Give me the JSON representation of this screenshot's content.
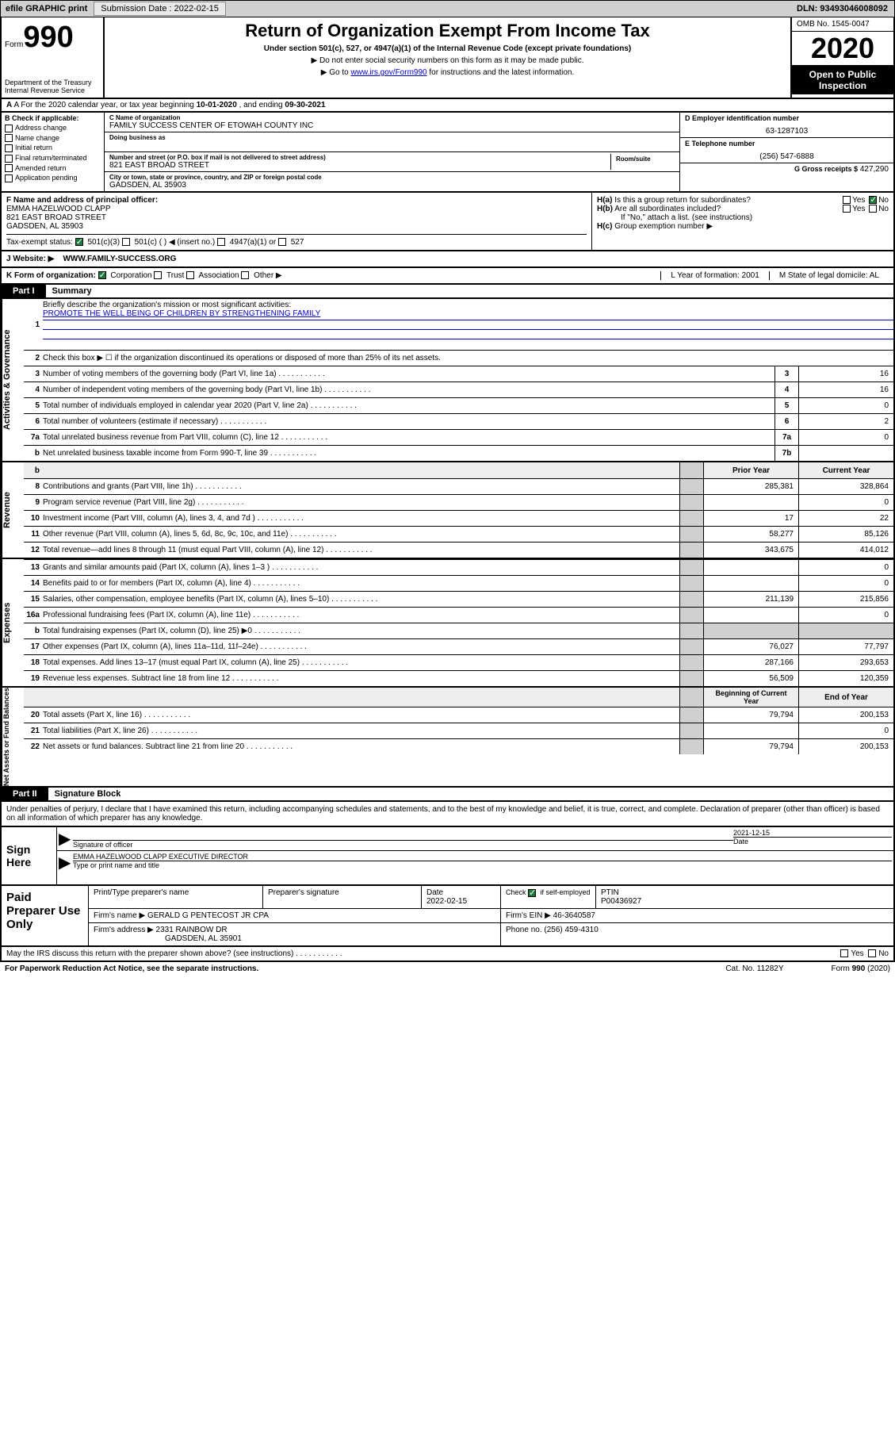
{
  "top": {
    "efile": "efile GRAPHIC print",
    "submission_label": "Submission Date :",
    "submission_date": "2022-02-15",
    "dln": "DLN: 93493046008092"
  },
  "header": {
    "form_word": "Form",
    "form_num": "990",
    "dept": "Department of the Treasury\nInternal Revenue Service",
    "title": "Return of Organization Exempt From Income Tax",
    "sub1": "Under section 501(c), 527, or 4947(a)(1) of the Internal Revenue Code (except private foundations)",
    "sub2": "▶ Do not enter social security numbers on this form as it may be made public.",
    "sub3_pre": "▶ Go to ",
    "sub3_link": "www.irs.gov/Form990",
    "sub3_post": " for instructions and the latest information.",
    "omb": "OMB No. 1545-0047",
    "year": "2020",
    "open": "Open to Public Inspection"
  },
  "row_a": {
    "pre": "A For the 2020 calendar year, or tax year beginning ",
    "begin": "10-01-2020",
    "mid": "   , and ending ",
    "end": "09-30-2021"
  },
  "col_b": {
    "hdr": "B Check if applicable:",
    "items": [
      "Address change",
      "Name change",
      "Initial return",
      "Final return/terminated",
      "Amended return",
      "Application pending"
    ]
  },
  "col_c": {
    "name_lbl": "C Name of organization",
    "name": "FAMILY SUCCESS CENTER OF ETOWAH COUNTY INC",
    "dba_lbl": "Doing business as",
    "street_lbl": "Number and street (or P.O. box if mail is not delivered to street address)",
    "street": "821 EAST BROAD STREET",
    "room_lbl": "Room/suite",
    "city_lbl": "City or town, state or province, country, and ZIP or foreign postal code",
    "city": "GADSDEN, AL  35903"
  },
  "col_d": {
    "d_lbl": "D Employer identification number",
    "ein": "63-1287103",
    "e_lbl": "E Telephone number",
    "phone": "(256) 547-6888",
    "g_lbl": "G Gross receipts $",
    "gross": "427,290"
  },
  "col_f": {
    "lbl": "F Name and address of principal officer:",
    "name": "EMMA HAZELWOOD CLAPP",
    "addr1": "821 EAST BROAD STREET",
    "addr2": "GADSDEN, AL  35903"
  },
  "col_h": {
    "ha": "H(a)  Is this a group return for subordinates?",
    "hb": "H(b)  Are all subordinates included?",
    "hb_note": "If \"No,\" attach a list. (see instructions)",
    "hc": "H(c)  Group exemption number ▶",
    "yes": "Yes",
    "no": "No"
  },
  "tax_status": {
    "lbl": "Tax-exempt status:",
    "o1": "501(c)(3)",
    "o2": "501(c) (   ) ◀ (insert no.)",
    "o3": "4947(a)(1) or",
    "o4": "527"
  },
  "website": {
    "lbl": "J   Website: ▶",
    "val": "WWW.FAMILY-SUCCESS.ORG"
  },
  "row_k": {
    "lbl": "K Form of organization:",
    "corp": "Corporation",
    "trust": "Trust",
    "assoc": "Association",
    "other": "Other ▶",
    "l": "L Year of formation: 2001",
    "m": "M State of legal domicile: AL"
  },
  "part1": {
    "pt": "Part I",
    "title": "Summary"
  },
  "vtabs": {
    "gov": "Activities & Governance",
    "rev": "Revenue",
    "exp": "Expenses",
    "net": "Net Assets or Fund Balances"
  },
  "gov_lines": {
    "l1_txt": "Briefly describe the organization's mission or most significant activities:",
    "l1_mission": "PROMOTE THE WELL BEING OF CHILDREN BY STRENGTHENING FAMILY",
    "l2_txt": "Check this box ▶ ☐  if the organization discontinued its operations or disposed of more than 25% of its net assets.",
    "l3_txt": "Number of voting members of the governing body (Part VI, line 1a)",
    "l4_txt": "Number of independent voting members of the governing body (Part VI, line 1b)",
    "l5_txt": "Total number of individuals employed in calendar year 2020 (Part V, line 2a)",
    "l6_txt": "Total number of volunteers (estimate if necessary)",
    "l7a_txt": "Total unrelated business revenue from Part VIII, column (C), line 12",
    "l7b_txt": "Net unrelated business taxable income from Form 990-T, line 39",
    "v3": "16",
    "v4": "16",
    "v5": "0",
    "v6": "2",
    "v7a": "0",
    "v7b": ""
  },
  "hdr_cols": {
    "b": "b",
    "prior": "Prior Year",
    "current": "Current Year"
  },
  "rev_lines": [
    {
      "n": "8",
      "t": "Contributions and grants (Part VIII, line 1h)",
      "p": "285,381",
      "c": "328,864"
    },
    {
      "n": "9",
      "t": "Program service revenue (Part VIII, line 2g)",
      "p": "",
      "c": "0"
    },
    {
      "n": "10",
      "t": "Investment income (Part VIII, column (A), lines 3, 4, and 7d )",
      "p": "17",
      "c": "22"
    },
    {
      "n": "11",
      "t": "Other revenue (Part VIII, column (A), lines 5, 6d, 8c, 9c, 10c, and 11e)",
      "p": "58,277",
      "c": "85,126"
    },
    {
      "n": "12",
      "t": "Total revenue—add lines 8 through 11 (must equal Part VIII, column (A), line 12)",
      "p": "343,675",
      "c": "414,012"
    }
  ],
  "exp_lines": [
    {
      "n": "13",
      "t": "Grants and similar amounts paid (Part IX, column (A), lines 1–3 )",
      "p": "",
      "c": "0"
    },
    {
      "n": "14",
      "t": "Benefits paid to or for members (Part IX, column (A), line 4)",
      "p": "",
      "c": "0"
    },
    {
      "n": "15",
      "t": "Salaries, other compensation, employee benefits (Part IX, column (A), lines 5–10)",
      "p": "211,139",
      "c": "215,856"
    },
    {
      "n": "16a",
      "t": "Professional fundraising fees (Part IX, column (A), line 11e)",
      "p": "",
      "c": "0"
    },
    {
      "n": "b",
      "t": "Total fundraising expenses (Part IX, column (D), line 25) ▶0",
      "p": "grey",
      "c": "grey"
    },
    {
      "n": "17",
      "t": "Other expenses (Part IX, column (A), lines 11a–11d, 11f–24e)",
      "p": "76,027",
      "c": "77,797"
    },
    {
      "n": "18",
      "t": "Total expenses. Add lines 13–17 (must equal Part IX, column (A), line 25)",
      "p": "287,166",
      "c": "293,653"
    },
    {
      "n": "19",
      "t": "Revenue less expenses. Subtract line 18 from line 12",
      "p": "56,509",
      "c": "120,359"
    }
  ],
  "net_hdr": {
    "begin": "Beginning of Current Year",
    "end": "End of Year"
  },
  "net_lines": [
    {
      "n": "20",
      "t": "Total assets (Part X, line 16)",
      "p": "79,794",
      "c": "200,153"
    },
    {
      "n": "21",
      "t": "Total liabilities (Part X, line 26)",
      "p": "",
      "c": "0"
    },
    {
      "n": "22",
      "t": "Net assets or fund balances. Subtract line 21 from line 20",
      "p": "79,794",
      "c": "200,153"
    }
  ],
  "part2": {
    "pt": "Part II",
    "title": "Signature Block"
  },
  "part2_text": "Under penalties of perjury, I declare that I have examined this return, including accompanying schedules and statements, and to the best of my knowledge and belief, it is true, correct, and complete. Declaration of preparer (other than officer) is based on all information of which preparer has any knowledge.",
  "sign": {
    "here": "Sign Here",
    "sig_lbl": "Signature of officer",
    "date_lbl": "Date",
    "date": "2021-12-15",
    "name": "EMMA HAZELWOOD CLAPP  EXECUTIVE DIRECTOR",
    "name_lbl": "Type or print name and title"
  },
  "preparer": {
    "lbl": "Paid Preparer Use Only",
    "h1": "Print/Type preparer's name",
    "h2": "Preparer's signature",
    "h3": "Date",
    "date": "2022-02-15",
    "h4": "Check ☑ if self-employed",
    "h5": "PTIN",
    "ptin": "P00436927",
    "firm_lbl": "Firm's name      ▶",
    "firm": "GERALD G PENTECOST JR CPA",
    "ein_lbl": "Firm's EIN ▶",
    "ein": "46-3640587",
    "addr_lbl": "Firm's address ▶",
    "addr1": "2331 RAINBOW DR",
    "addr2": "GADSDEN, AL  35901",
    "phone_lbl": "Phone no.",
    "phone": "(256) 459-4310"
  },
  "footer": {
    "discuss": "May the IRS discuss this return with the preparer shown above? (see instructions)",
    "yes": "Yes",
    "no": "No",
    "paperwork": "For Paperwork Reduction Act Notice, see the separate instructions.",
    "cat": "Cat. No. 11282Y",
    "formref": "Form 990 (2020)"
  }
}
